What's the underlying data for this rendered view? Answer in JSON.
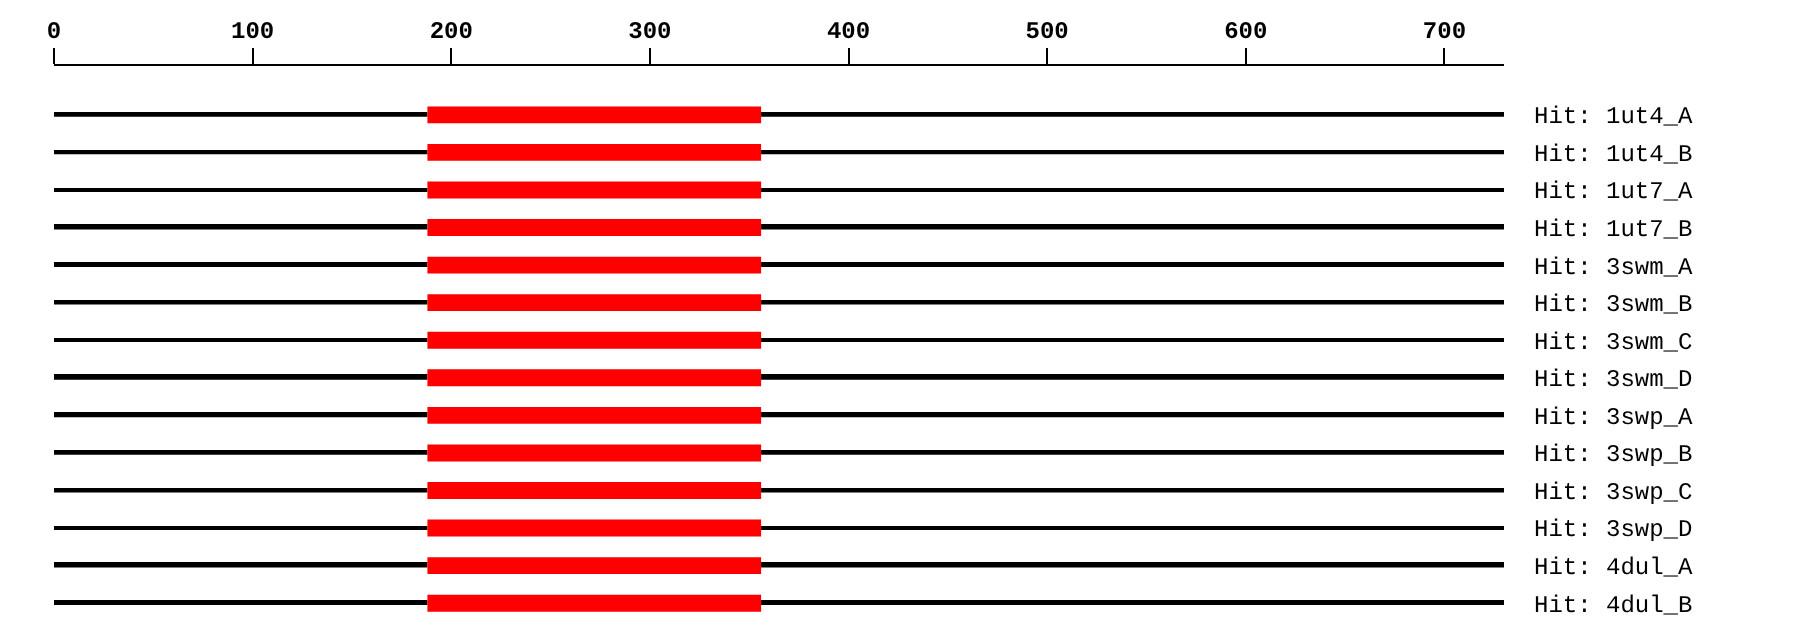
{
  "chart_data": {
    "type": "bar",
    "orientation": "horizontal",
    "categories": [
      "Hit: 1ut4_A",
      "Hit: 1ut4_B",
      "Hit: 1ut7_A",
      "Hit: 1ut7_B",
      "Hit: 3swm_A",
      "Hit: 3swm_B",
      "Hit: 3swm_C",
      "Hit: 3swm_D",
      "Hit: 3swp_A",
      "Hit: 3swp_B",
      "Hit: 3swp_C",
      "Hit: 3swp_D",
      "Hit: 4dul_A",
      "Hit: 4dul_B"
    ],
    "series": [
      {
        "color": "#000000",
        "base": [
          0,
          0,
          0,
          0,
          0,
          0,
          0,
          0,
          0,
          0,
          0,
          0,
          0,
          0
        ],
        "values": [
          188,
          188,
          188,
          188,
          188,
          188,
          188,
          188,
          188,
          188,
          188,
          188,
          188,
          188
        ]
      },
      {
        "color": "#ff0000",
        "base": [
          188,
          188,
          188,
          188,
          188,
          188,
          188,
          188,
          188,
          188,
          188,
          188,
          188,
          188
        ],
        "values": [
          168,
          168,
          168,
          168,
          168,
          168,
          168,
          168,
          168,
          168,
          168,
          168,
          168,
          168
        ]
      },
      {
        "color": "#000000",
        "base": [
          356,
          356,
          356,
          356,
          356,
          356,
          356,
          356,
          356,
          356,
          356,
          356,
          356,
          356
        ],
        "values": [
          374,
          374,
          374,
          374,
          374,
          374,
          374,
          374,
          374,
          374,
          374,
          374,
          374,
          374
        ]
      }
    ],
    "xlim": [
      0,
      730
    ],
    "xticks": [
      0,
      100,
      200,
      300,
      400,
      500,
      600,
      700
    ],
    "stacked": false
  }
}
